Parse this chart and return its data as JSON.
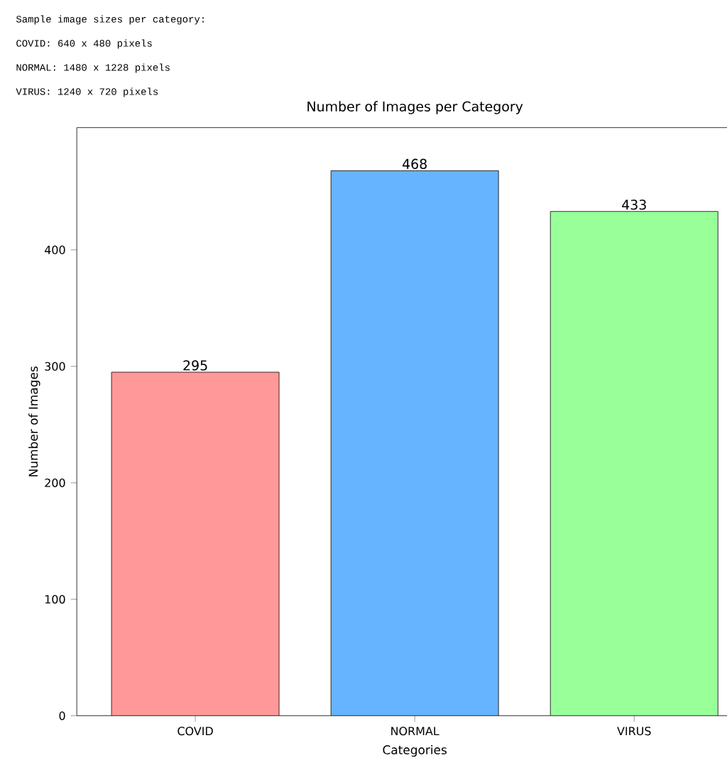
{
  "chart_data": {
    "type": "bar",
    "title": "Number of Images per Category",
    "xlabel": "Categories",
    "ylabel": "Number of Images",
    "annotations": [
      "Sample image sizes per category:",
      "COVID: 640 x 480 pixels",
      "NORMAL: 1480 x 1228 pixels",
      "VIRUS: 1240 x 720 pixels"
    ],
    "categories": [
      "COVID",
      "NORMAL",
      "VIRUS"
    ],
    "values": [
      295,
      468,
      433
    ],
    "colors": [
      "#ff9999",
      "#66b3ff",
      "#99ff99"
    ],
    "ylim": [
      0,
      505
    ],
    "yticks": [
      0,
      100,
      200,
      300,
      400
    ],
    "data_labels": true,
    "grid": false
  }
}
